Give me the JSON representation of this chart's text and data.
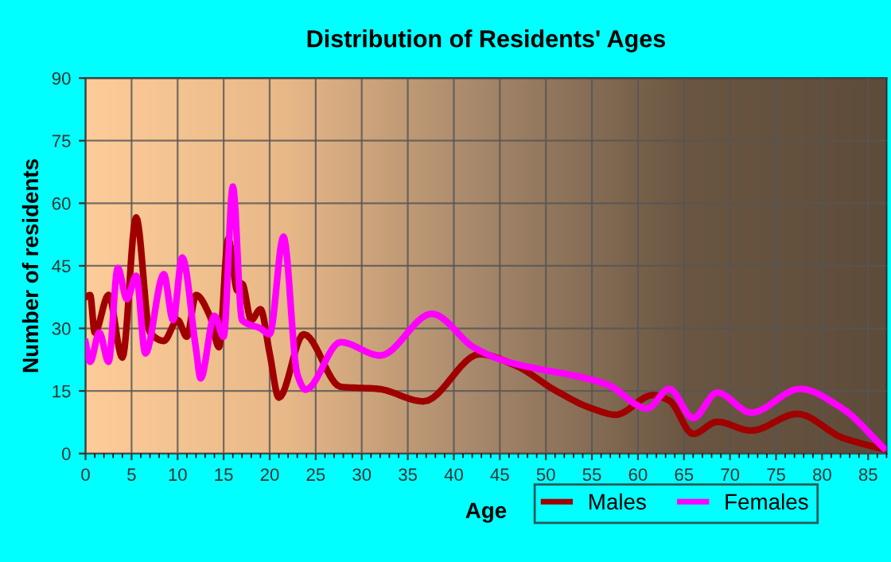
{
  "chart_data": {
    "type": "line",
    "title": "Distribution of Residents' Ages",
    "xlabel": "Age",
    "ylabel": "Number of residents",
    "xlim": [
      0,
      87
    ],
    "xticks": [
      0,
      5,
      10,
      15,
      20,
      25,
      30,
      35,
      40,
      45,
      50,
      55,
      60,
      65,
      70,
      75,
      80,
      85
    ],
    "ylim": [
      0,
      90
    ],
    "yticks": [
      0,
      15,
      30,
      45,
      60,
      75,
      90
    ],
    "grid": true,
    "legend": "bottom right",
    "marker": "none",
    "line_style": "solid",
    "series": [
      {
        "name": "Males",
        "color": "#a00000",
        "x": [
          0,
          0.5,
          1,
          2.5,
          4,
          5.5,
          7,
          8.5,
          10,
          11,
          12,
          13.5,
          14.5,
          15.5,
          16.5,
          17,
          18,
          19,
          20,
          21,
          23.7,
          27.7,
          31.8,
          36.7,
          42.8,
          46.8,
          50.9,
          55,
          57.6,
          61.6,
          63.4,
          66,
          68.6,
          72.3,
          77.3,
          82.2,
          86.7
        ],
        "values": [
          37.5,
          38,
          29,
          38,
          23,
          56.6,
          29,
          27,
          32,
          28,
          38,
          33,
          25.5,
          51.5,
          39,
          40.7,
          32,
          34.6,
          24,
          13.4,
          28.6,
          16,
          15.5,
          12.5,
          23.8,
          21,
          15.3,
          10.8,
          9.3,
          14,
          12.7,
          4.7,
          7.6,
          5.5,
          9.5,
          3.8,
          1
        ]
      },
      {
        "name": "Females",
        "color": "#ff00ff",
        "x": [
          0,
          0.5,
          1.5,
          2.5,
          3.5,
          4.5,
          5.5,
          6.5,
          8.5,
          9.5,
          10.5,
          12,
          12.5,
          14,
          15,
          16,
          17,
          19,
          20,
          21.5,
          23,
          23.9,
          27.7,
          32,
          37.6,
          42.2,
          45.1,
          56.7,
          61,
          63.4,
          66,
          68.6,
          72.3,
          77.6,
          82.2,
          86.7
        ],
        "values": [
          26.7,
          22,
          29,
          22,
          44.5,
          37,
          42.6,
          24,
          43,
          32,
          47,
          25,
          18,
          33,
          28,
          64,
          32,
          30,
          28.6,
          52,
          19,
          15.3,
          26.7,
          23.5,
          33.5,
          25.4,
          22.5,
          16.5,
          10.8,
          15.5,
          8.5,
          14.6,
          9.8,
          15.5,
          10.8,
          1.3
        ]
      }
    ]
  }
}
